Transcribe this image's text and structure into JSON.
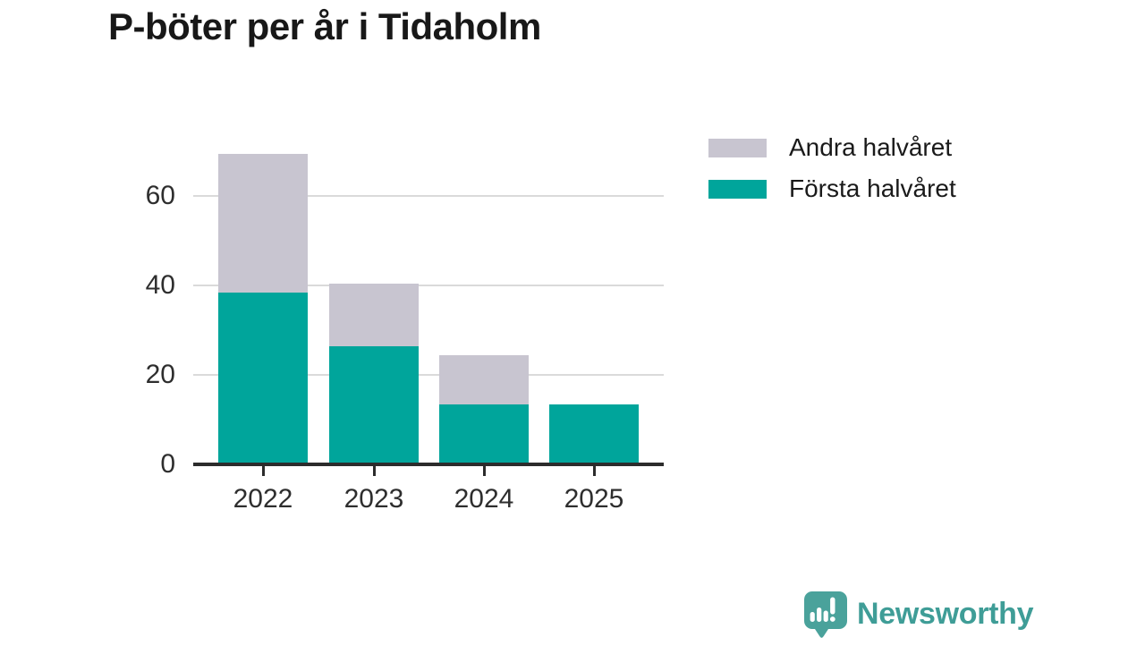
{
  "chart_data": {
    "type": "bar",
    "stacked": true,
    "title": "P-böter per år i Tidaholm",
    "categories": [
      "2022",
      "2023",
      "2024",
      "2025"
    ],
    "series": [
      {
        "name": "Första halvåret",
        "color": "#00a59b",
        "values": [
          38,
          26,
          13,
          13
        ]
      },
      {
        "name": "Andra halvåret",
        "color": "#c8c5d0",
        "values": [
          31,
          14,
          11,
          0
        ]
      }
    ],
    "totals": [
      69,
      40,
      24,
      13
    ],
    "xlabel": "",
    "ylabel": "",
    "yticks": [
      0,
      20,
      40,
      60
    ],
    "ylim": [
      0,
      70
    ],
    "grid": true,
    "legend_position": "top-right",
    "legend_order_top_to_bottom": [
      "Andra halvåret",
      "Första halvåret"
    ]
  },
  "colors": {
    "axis": "#2c2c2c",
    "gridline": "#dadada",
    "tick_text": "#2e2e2e",
    "title_text": "#181818",
    "brand_teal": "#3f9d97"
  },
  "branding": {
    "name": "Newsworthy",
    "logo_icon": "newsworthy-speech-bubble-bar-chart-icon"
  }
}
